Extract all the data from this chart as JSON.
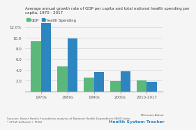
{
  "title": "Average annual growth rate of GDP per capita and total national health spending per\ncapita, 1970 - 2017",
  "legend": [
    "GDP",
    "Health Spending"
  ],
  "categories": [
    "1970s",
    "1980s",
    "1990s",
    "2000s",
    "2010-2017"
  ],
  "gdp_values": [
    9.3,
    4.7,
    2.6,
    1.9,
    2.1
  ],
  "health_values": [
    12.7,
    9.9,
    3.6,
    3.8,
    1.8
  ],
  "gdp_color": "#5cb87a",
  "health_color": "#2e86c1",
  "background_color": "#f5f5f5",
  "ylim": [
    0,
    14
  ],
  "yticks": [
    2.0,
    4.0,
    6.0,
    8.0,
    10.0,
    12.0
  ],
  "ytick_labels": [
    "2.0",
    "4.0",
    "6.0",
    "8.0",
    "10.0",
    "12.0%"
  ],
  "source_text": "Sources: Kaiser Family Foundation analysis of National Health Expenditure (NHE) data\n* CPI-W deflated + PHS2",
  "logo_line1": "Peterson-Kaiser",
  "logo_line2": "Health System Tracker"
}
